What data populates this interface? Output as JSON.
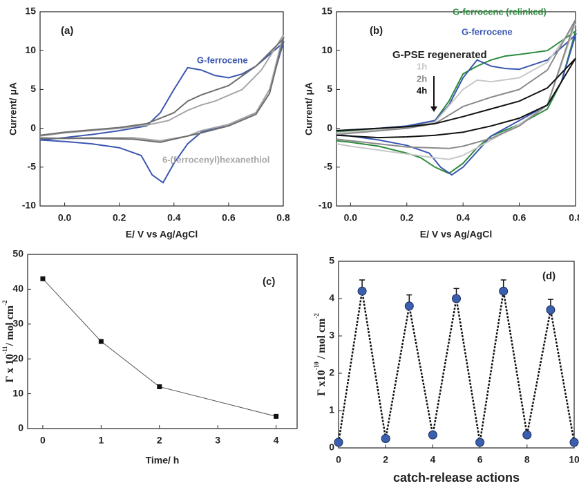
{
  "chart_data": [
    {
      "type": "line",
      "xlabel": "E/ V vs Ag/AgCl",
      "ylabel": "Current/ μA",
      "xlim": [
        -0.09,
        0.8
      ],
      "ylim": [
        -10,
        15
      ],
      "xticks": [
        {
          "value": 0,
          "label": "0.0"
        },
        0.2,
        0.4,
        0.6,
        0.8
      ],
      "yticks": [
        -10,
        -5,
        0,
        5,
        10,
        15
      ],
      "annotations": [
        "(a)"
      ],
      "series": [
        {
          "name": "G-ferrocene",
          "color": "#3a56b0",
          "x": [
            -0.09,
            0,
            0.1,
            0.2,
            0.3,
            0.35,
            0.4,
            0.45,
            0.5,
            0.55,
            0.6,
            0.65,
            0.7,
            0.75,
            0.8,
            0.75,
            0.7,
            0.6,
            0.5,
            0.45,
            0.4,
            0.36,
            0.32,
            0.28,
            0.2,
            0.1,
            0,
            -0.09
          ],
          "values": [
            -1.5,
            -1.2,
            -0.8,
            -0.3,
            0.3,
            2,
            5,
            7.8,
            7.5,
            6.8,
            6.5,
            7,
            8,
            9.5,
            11,
            5,
            2,
            0.5,
            -0.5,
            -2,
            -4.5,
            -7,
            -6,
            -3.5,
            -2.5,
            -2,
            -1.7,
            -1.5
          ]
        },
        {
          "name": "6-(ferrocenyl)hexanethiol",
          "color": "#a6a6a6",
          "x": [
            -0.09,
            0,
            0.2,
            0.3,
            0.38,
            0.45,
            0.5,
            0.55,
            0.65,
            0.72,
            0.8,
            0.75,
            0.7,
            0.6,
            0.5,
            0.45,
            0.35,
            0.25,
            0.1,
            0,
            -0.09
          ],
          "values": [
            -1,
            -0.6,
            0,
            0.4,
            1,
            2.3,
            3,
            3.5,
            5,
            7.5,
            12,
            5,
            2,
            0.5,
            -0.3,
            -1,
            -1.6,
            -1.2,
            -1.2,
            -1.3,
            -1.2
          ]
        },
        {
          "color": "#6e6e6e",
          "x": [
            -0.09,
            0,
            0.2,
            0.3,
            0.4,
            0.45,
            0.5,
            0.6,
            0.7,
            0.8,
            0.75,
            0.7,
            0.6,
            0.5,
            0.4,
            0.35,
            0.25,
            0.1,
            0,
            -0.09
          ],
          "values": [
            -0.9,
            -0.5,
            0.1,
            0.6,
            2,
            3.5,
            4.3,
            5.5,
            8,
            11.5,
            4.5,
            1.8,
            0.3,
            -0.6,
            -1.4,
            -1.8,
            -1.4,
            -1.3,
            -1.3,
            -1.3
          ]
        }
      ]
    },
    {
      "type": "line",
      "xlabel": "E/ V vs Ag/AgCl",
      "ylabel": "Current/ μA",
      "xlim": [
        -0.05,
        0.8
      ],
      "ylim": [
        -10,
        15
      ],
      "xticks": [
        {
          "value": 0,
          "label": "0.0"
        },
        0.2,
        0.4,
        0.6,
        0.8
      ],
      "yticks": [
        -10,
        -5,
        0,
        5,
        10,
        15
      ],
      "annotations": [
        "(b)",
        "G-PSE regenerated"
      ],
      "series": [
        {
          "name": "G-ferrocene (relinked)",
          "color": "#2e8b3e",
          "x": [
            -0.05,
            0,
            0.2,
            0.3,
            0.35,
            0.4,
            0.45,
            0.5,
            0.55,
            0.6,
            0.7,
            0.8,
            0.75,
            0.7,
            0.6,
            0.5,
            0.45,
            0.4,
            0.35,
            0.3,
            0.25,
            0.2,
            0.1,
            0,
            -0.05
          ],
          "values": [
            -0.5,
            -0.3,
            0.2,
            1,
            3.5,
            7,
            8,
            8.8,
            9.3,
            9.5,
            10,
            12.5,
            6,
            2.5,
            0.5,
            -1,
            -2.5,
            -4.5,
            -5.8,
            -5,
            -3.8,
            -3.2,
            -2.3,
            -1.8,
            -1.6
          ]
        },
        {
          "name": "G-ferrocene",
          "color": "#3a56b0",
          "x": [
            -0.05,
            0,
            0.1,
            0.2,
            0.3,
            0.35,
            0.4,
            0.45,
            0.5,
            0.55,
            0.6,
            0.7,
            0.8,
            0.75,
            0.7,
            0.6,
            0.5,
            0.45,
            0.4,
            0.36,
            0.32,
            0.28,
            0.2,
            0.1,
            0,
            -0.05
          ],
          "values": [
            -0.3,
            -0.2,
            0,
            0.3,
            1,
            3,
            6.5,
            8.8,
            8,
            7.7,
            7.6,
            8.8,
            12,
            6,
            3,
            1,
            -1,
            -3,
            -5,
            -6,
            -5,
            -3.2,
            -2.2,
            -1.5,
            -1,
            -0.8
          ]
        },
        {
          "name": "1h",
          "color": "#c8c8c8",
          "x": [
            -0.05,
            0.2,
            0.3,
            0.4,
            0.45,
            0.5,
            0.6,
            0.7,
            0.8,
            0.7,
            0.6,
            0.5,
            0.4,
            0.35,
            0.3,
            0.2,
            0.1,
            0,
            -0.05
          ],
          "values": [
            -0.6,
            0.1,
            0.8,
            5,
            6.2,
            6,
            6.5,
            8.5,
            13.5,
            3,
            0.5,
            -1.5,
            -3.5,
            -4,
            -3.8,
            -3.3,
            -2.8,
            -2.3,
            -2
          ]
        },
        {
          "name": "2h",
          "color": "#8a8a8a",
          "x": [
            -0.05,
            0.2,
            0.3,
            0.4,
            0.5,
            0.6,
            0.7,
            0.8,
            0.7,
            0.6,
            0.5,
            0.4,
            0.35,
            0.2,
            0.1,
            0,
            -0.05
          ],
          "values": [
            -0.8,
            0,
            0.6,
            2.8,
            4,
            5,
            7.5,
            14,
            3,
            0.3,
            -1.3,
            -2.3,
            -2.6,
            -2.4,
            -2,
            -1.6,
            -1.4
          ]
        },
        {
          "name": "4h",
          "color": "#111111",
          "x": [
            -0.05,
            0.2,
            0.3,
            0.4,
            0.5,
            0.6,
            0.7,
            0.8,
            0.7,
            0.6,
            0.5,
            0.4,
            0.3,
            0.2,
            0.1,
            0,
            -0.05
          ],
          "values": [
            -0.3,
            0.2,
            0.6,
            1.5,
            2.5,
            3.5,
            5.2,
            9,
            3,
            1.3,
            0.3,
            -0.5,
            -0.9,
            -1.1,
            -1.2,
            -1,
            -0.9
          ]
        }
      ]
    },
    {
      "type": "line",
      "xlabel": "Time/ h",
      "ylabel": [
        "Γ x 10",
        "-11",
        "/ mol cm",
        "-2"
      ],
      "xlim": [
        -0.26,
        4.36
      ],
      "ylim": [
        0,
        50
      ],
      "xticks": [
        0,
        1,
        2,
        3,
        4
      ],
      "yticks": [
        0,
        10,
        20,
        30,
        40,
        50
      ],
      "annotations": [
        "(c)"
      ],
      "marker": "square",
      "x": [
        0,
        1,
        2,
        4
      ],
      "series": [
        {
          "color": "#555555",
          "values": [
            43,
            25,
            12,
            3.5
          ]
        }
      ]
    },
    {
      "type": "line",
      "xlabel": "catch-release actions",
      "ylabel": [
        "Γ x10",
        "-10",
        " / mol cm",
        "-2"
      ],
      "xlim": [
        0,
        10
      ],
      "ylim": [
        0,
        5
      ],
      "xticks": [
        0,
        2,
        4,
        6,
        8,
        10
      ],
      "yticks": [
        0,
        1,
        2,
        3,
        4,
        5
      ],
      "annotations": [
        "(d)"
      ],
      "marker": "circle",
      "line_style": "dashed",
      "x": [
        0,
        1,
        2,
        3,
        4,
        5,
        6,
        7,
        8,
        9,
        10
      ],
      "series": [
        {
          "color": "#3a5fb0",
          "values": [
            0.15,
            4.2,
            0.25,
            3.8,
            0.35,
            4.0,
            0.15,
            4.2,
            0.35,
            3.7,
            0.15
          ],
          "errors": [
            0,
            0.3,
            0,
            0.3,
            0,
            0.27,
            0,
            0.3,
            0,
            0.28,
            0
          ]
        }
      ]
    }
  ]
}
